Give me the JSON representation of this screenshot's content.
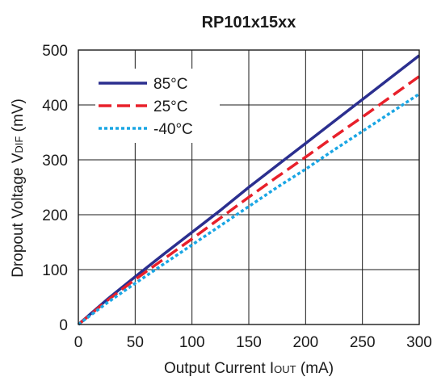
{
  "chart_data": {
    "type": "line",
    "title": "RP101x15xx",
    "xlabel": {
      "main": "Output Current I",
      "sub": "OUT",
      "unit": " (mA)"
    },
    "ylabel": {
      "main": "Dropout Voltage V",
      "sub": "DIF",
      "unit": " (mV)"
    },
    "xlim": [
      0,
      300
    ],
    "ylim": [
      0,
      500
    ],
    "xticks": [
      "0",
      "50",
      "100",
      "150",
      "200",
      "250",
      "300"
    ],
    "yticks": [
      "0",
      "100",
      "200",
      "300",
      "400",
      "500"
    ],
    "grid": true,
    "legend_position": "top-left",
    "series": [
      {
        "name": "85°C",
        "color": "#2b2f8f",
        "style": "solid",
        "x": [
          0,
          25,
          50,
          75,
          100,
          125,
          150,
          175,
          200,
          225,
          250,
          275,
          300
        ],
        "y": [
          0,
          45,
          87,
          128,
          168,
          208,
          250,
          290,
          330,
          370,
          410,
          450,
          490
        ]
      },
      {
        "name": "25°C",
        "color": "#e8202a",
        "style": "dashed",
        "x": [
          0,
          25,
          50,
          75,
          100,
          125,
          150,
          175,
          200,
          225,
          250,
          275,
          300
        ],
        "y": [
          0,
          43,
          82,
          119,
          156,
          194,
          232,
          269,
          305,
          342,
          378,
          415,
          452
        ]
      },
      {
        "name": "-40°C",
        "color": "#1aa6e4",
        "style": "dotted",
        "x": [
          0,
          25,
          50,
          75,
          100,
          125,
          150,
          175,
          200,
          225,
          250,
          275,
          300
        ],
        "y": [
          0,
          39,
          75,
          110,
          145,
          180,
          215,
          250,
          283,
          318,
          352,
          386,
          420
        ]
      }
    ]
  }
}
